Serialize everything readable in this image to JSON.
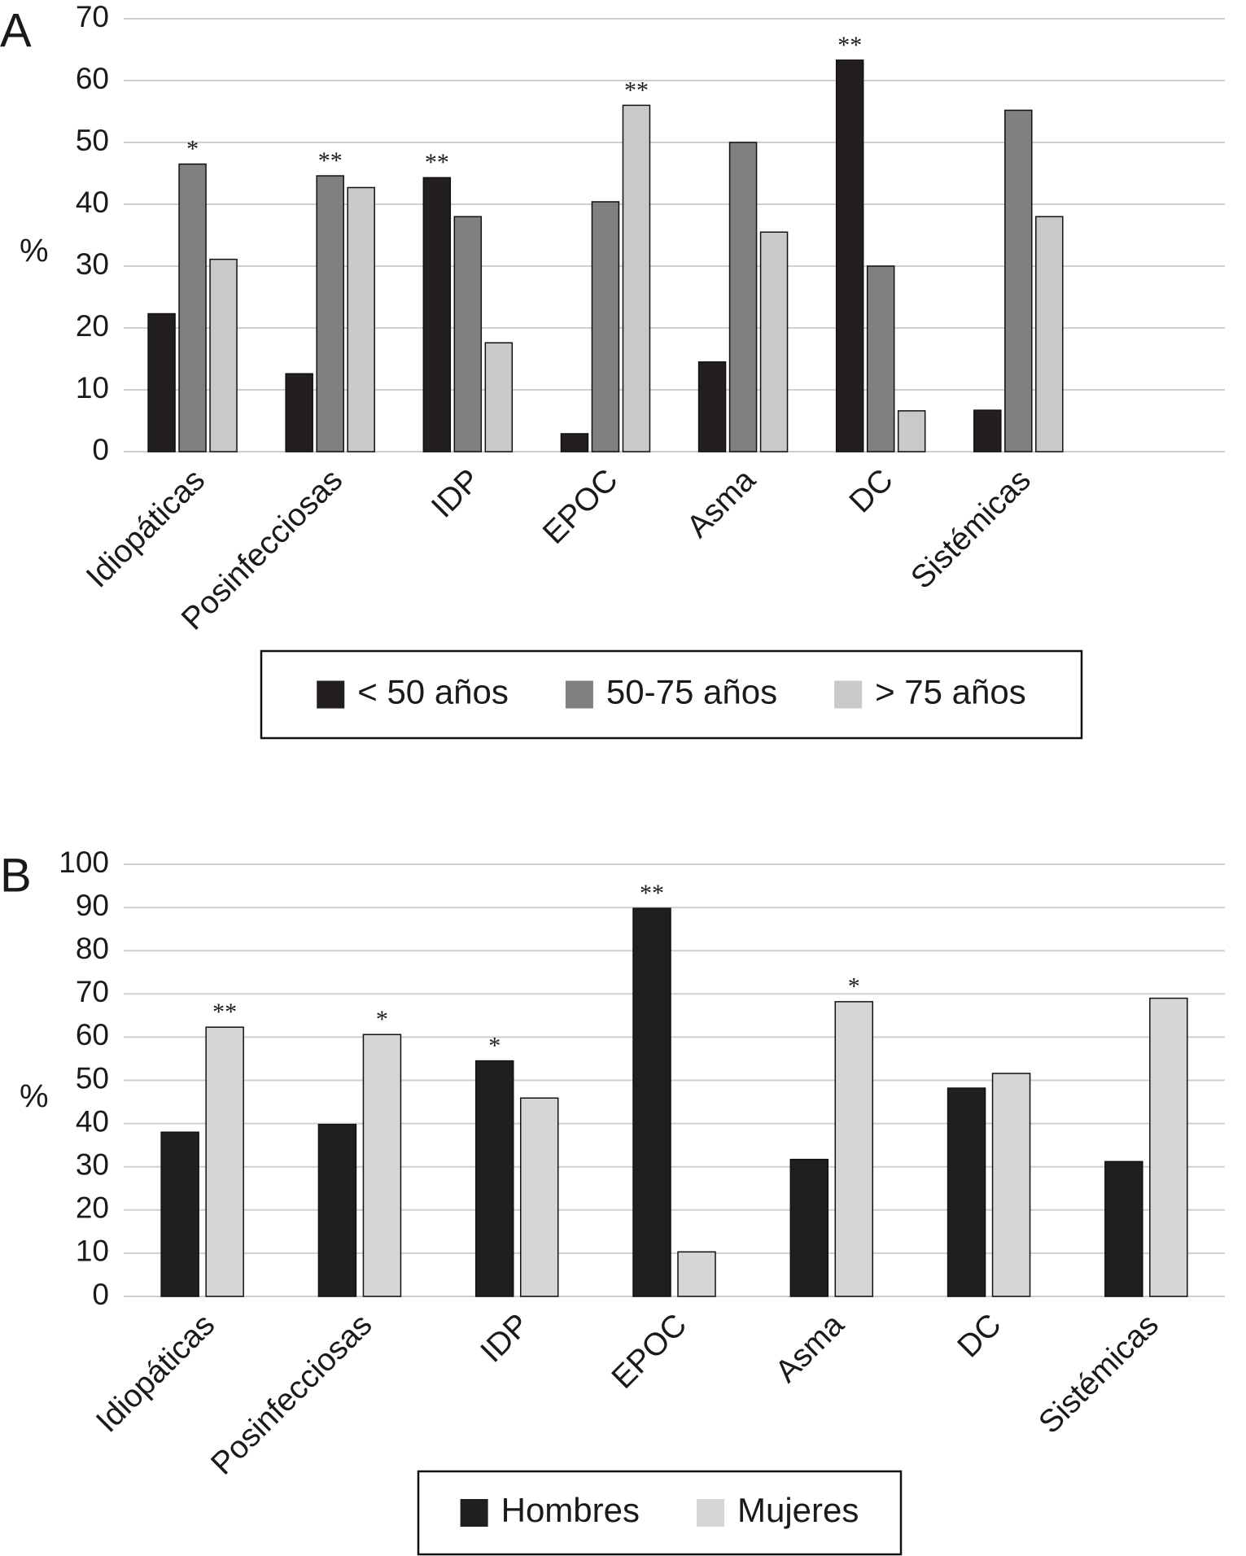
{
  "chart_data": [
    {
      "type": "bar",
      "panel_label": "A",
      "ylabel": "%",
      "categories": [
        "Idiopáticas",
        "Posinfecciosas",
        "IDP",
        "EPOC",
        "Asma",
        "DC",
        "Sistémicas",
        null
      ],
      "series": [
        {
          "name": "< 50 años",
          "color": "#231f20",
          "values": [
            22.3,
            12.6,
            44.3,
            2.9,
            14.5,
            63.3,
            6.7,
            null
          ]
        },
        {
          "name": "50-75 años",
          "color": "#808080",
          "values": [
            46.5,
            44.6,
            38.0,
            40.4,
            50.0,
            30.0,
            55.2,
            null
          ]
        },
        {
          "name": "> 75 años",
          "color": "#c9c9c9",
          "values": [
            31.1,
            42.7,
            17.6,
            56.0,
            35.5,
            6.6,
            38.0,
            null
          ]
        }
      ],
      "annotations": [
        "*",
        "**",
        "**",
        "**",
        null,
        "**",
        null,
        null
      ],
      "ylim": [
        0,
        70
      ],
      "yticks": [
        0,
        10,
        20,
        30,
        40,
        50,
        60,
        70
      ],
      "grid": true
    },
    {
      "type": "bar",
      "panel_label": "B",
      "ylabel": "%",
      "categories": [
        "Idiopáticas",
        "Posinfecciosas",
        "IDP",
        "EPOC",
        "Asma",
        "DC",
        "Sistémicas"
      ],
      "series": [
        {
          "name": "Hombres",
          "color": "#1f1f1f",
          "values": [
            38.0,
            39.8,
            54.5,
            89.8,
            31.7,
            48.2,
            31.2
          ]
        },
        {
          "name": "Mujeres",
          "color": "#d6d6d6",
          "values": [
            62.3,
            60.6,
            45.9,
            10.3,
            68.2,
            51.6,
            69.0
          ]
        }
      ],
      "annotations": [
        "**",
        "*",
        "*",
        "**",
        "*",
        null,
        null
      ],
      "ylim": [
        0,
        100
      ],
      "yticks": [
        0,
        10,
        20,
        30,
        40,
        50,
        60,
        70,
        80,
        90,
        100
      ],
      "grid": true
    }
  ]
}
